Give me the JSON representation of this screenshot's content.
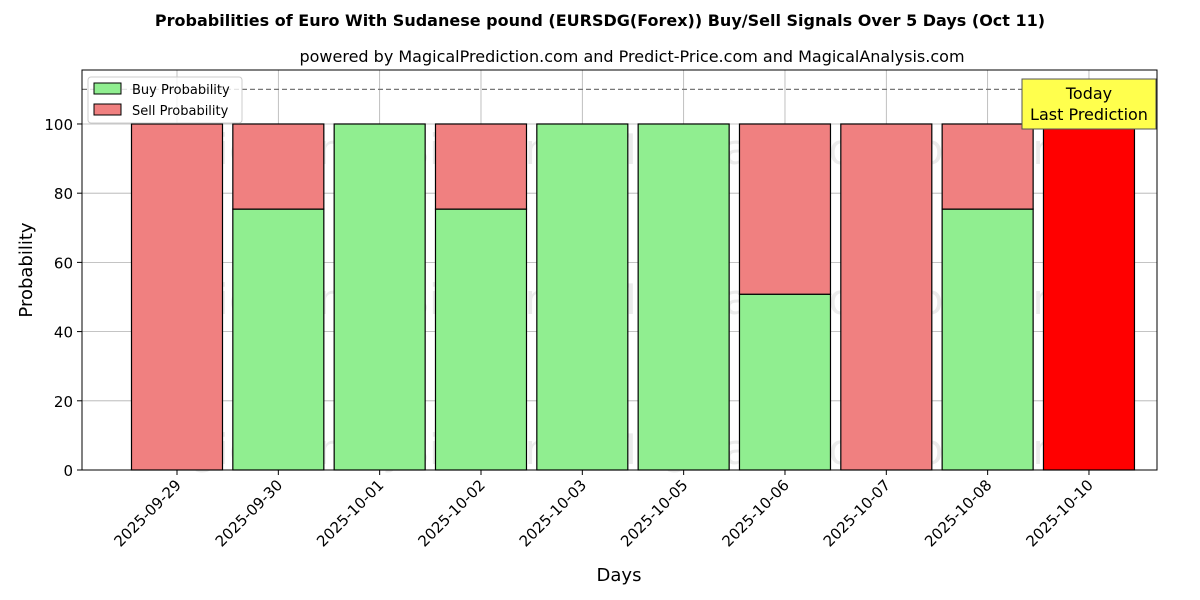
{
  "chart_data": {
    "type": "bar",
    "stacked": true,
    "title": "Probabilities of Euro With Sudanese pound (EURSDG(Forex)) Buy/Sell Signals Over 5 Days (Oct 11)",
    "subtitle": "powered by MagicalPrediction.com and Predict-Price.com and MagicalAnalysis.com",
    "xlabel": "Days",
    "ylabel": "Probability",
    "ylim": [
      0,
      115.6
    ],
    "yticks": [
      0,
      20,
      40,
      60,
      80,
      100
    ],
    "categories": [
      "2025-09-29",
      "2025-09-30",
      "2025-10-01",
      "2025-10-02",
      "2025-10-03",
      "2025-10-05",
      "2025-10-06",
      "2025-10-07",
      "2025-10-08",
      "2025-10-10"
    ],
    "series": [
      {
        "name": "Buy Probability",
        "color": "#90ee90",
        "values": [
          0,
          75.4,
          100,
          75.4,
          100,
          100,
          50.8,
          0,
          75.4,
          0
        ]
      },
      {
        "name": "Sell Probability",
        "color": "#f08080",
        "values": [
          100,
          24.6,
          0,
          24.6,
          0,
          0,
          49.2,
          100,
          24.6,
          100
        ]
      }
    ],
    "highlight": {
      "index": 9,
      "color": "#ff0000"
    },
    "reference_line": 110,
    "annotation": {
      "lines": [
        "Today",
        "Last Prediction"
      ],
      "color": "#ffff4d"
    },
    "legend_position": "top-left",
    "grid": true,
    "watermarks": [
      "MagicalAnalysis.com",
      "MagicalPrediction.com"
    ]
  }
}
